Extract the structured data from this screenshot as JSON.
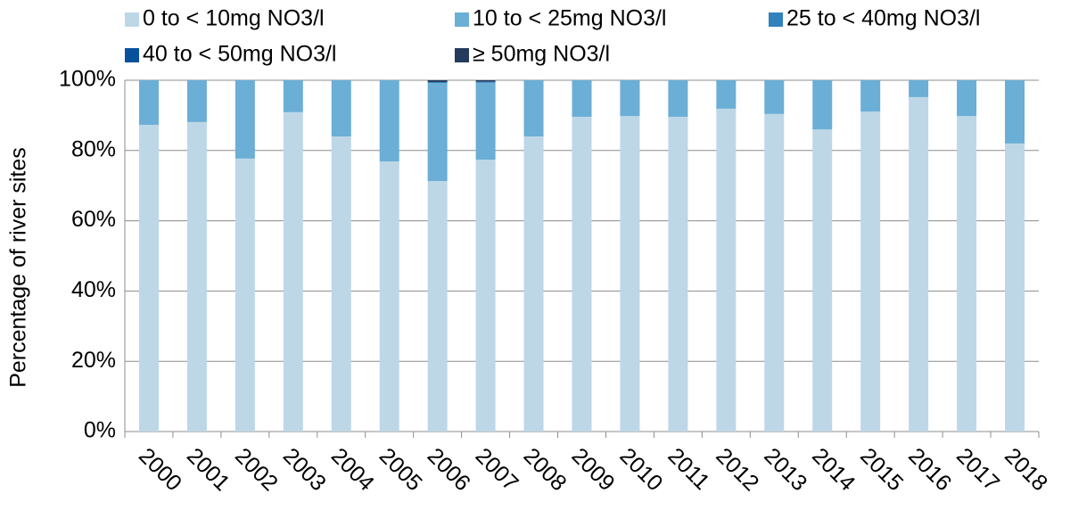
{
  "chart_data": {
    "type": "stacked_bar",
    "y_label": "Percentage of river sites",
    "categories": [
      "2000",
      "2001",
      "2002",
      "2003",
      "2004",
      "2005",
      "2006",
      "2007",
      "2008",
      "2009",
      "2010",
      "2011",
      "2012",
      "2013",
      "2014",
      "2015",
      "2016",
      "2017",
      "2018"
    ],
    "series": [
      {
        "name": "0 to < 10mg NO3/l",
        "color": "#bdd7e7",
        "values": [
          87.3,
          88.1,
          77.7,
          90.9,
          84.0,
          76.9,
          71.3,
          77.4,
          84.0,
          89.6,
          89.8,
          89.6,
          91.9,
          90.4,
          86.0,
          91.1,
          95.2,
          89.8,
          82.0
        ]
      },
      {
        "name": "10 to < 25mg NO3/l",
        "color": "#6baed6",
        "values": [
          12.7,
          11.9,
          22.3,
          9.1,
          16.0,
          23.1,
          27.9,
          21.9,
          16.0,
          10.4,
          10.2,
          10.4,
          8.1,
          9.6,
          14.0,
          8.9,
          4.8,
          10.2,
          18.0
        ]
      },
      {
        "name": "25 to < 40mg NO3/l",
        "color": "#3182bd",
        "values": [
          0,
          0,
          0,
          0,
          0,
          0,
          0.3,
          0.3,
          0,
          0,
          0,
          0,
          0,
          0,
          0,
          0,
          0,
          0,
          0
        ]
      },
      {
        "name": "40 to < 50mg NO3/l",
        "color": "#08519c",
        "values": [
          0,
          0,
          0,
          0,
          0,
          0,
          0,
          0,
          0,
          0,
          0,
          0,
          0,
          0,
          0,
          0,
          0,
          0,
          0
        ]
      },
      {
        "name": "≥ 50mg NO3/l",
        "color": "#253b5e",
        "values": [
          0,
          0,
          0,
          0,
          0,
          0,
          0.5,
          0.4,
          0,
          0,
          0,
          0,
          0,
          0,
          0,
          0,
          0,
          0,
          0
        ]
      }
    ],
    "ylim": [
      0,
      100
    ],
    "yticks": [
      {
        "value": 0,
        "label": "0%"
      },
      {
        "value": 20,
        "label": "20%"
      },
      {
        "value": 40,
        "label": "40%"
      },
      {
        "value": 60,
        "label": "60%"
      },
      {
        "value": 80,
        "label": "80%"
      },
      {
        "value": 100,
        "label": "100%"
      }
    ],
    "grid": true
  }
}
